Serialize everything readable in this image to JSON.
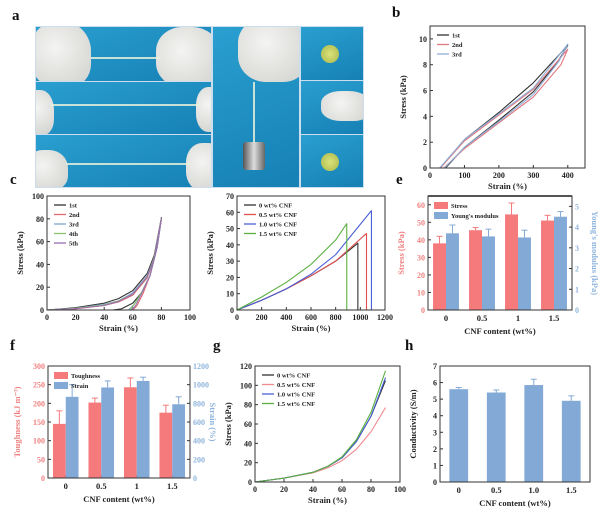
{
  "panels": {
    "a": "a",
    "b": "b",
    "c": "c",
    "d": "d",
    "e": "e",
    "f": "f",
    "g": "g",
    "h": "h"
  },
  "colors": {
    "photo_bg": "#1f8fc0",
    "bar_red": "#f47a7c",
    "bar_blue": "#83a9d6"
  },
  "chart_data": [
    {
      "panel": "b",
      "type": "line",
      "xlabel": "Strain (%)",
      "ylabel": "Stress (kPa)",
      "xlim": [
        0,
        450
      ],
      "ylim": [
        0,
        11
      ],
      "xticks": [
        0,
        100,
        200,
        300,
        400
      ],
      "yticks": [
        0,
        2,
        4,
        6,
        8,
        10
      ],
      "legend": "top-left",
      "series": [
        {
          "name": "1st",
          "color": "#333333",
          "x": [
            30,
            100,
            200,
            300,
            400,
            370,
            300,
            200,
            100,
            45
          ],
          "y": [
            0,
            2.2,
            4.3,
            6.6,
            9.5,
            8.2,
            5.9,
            3.7,
            1.6,
            0
          ]
        },
        {
          "name": "2nd",
          "color": "#e07880",
          "x": [
            30,
            100,
            200,
            300,
            400,
            380,
            300,
            200,
            100,
            40
          ],
          "y": [
            0,
            2.1,
            4.1,
            6.1,
            9.2,
            8.0,
            5.5,
            3.5,
            1.5,
            0
          ]
        },
        {
          "name": "3rd",
          "color": "#8fb0d8",
          "x": [
            28,
            100,
            200,
            300,
            400,
            375,
            300,
            200,
            100,
            42
          ],
          "y": [
            0,
            2.2,
            4.2,
            6.2,
            9.6,
            8.3,
            5.7,
            3.6,
            1.6,
            0
          ]
        }
      ]
    },
    {
      "panel": "c",
      "type": "line",
      "xlabel": "Strain (%)",
      "ylabel": "Stress (kPa)",
      "xlim": [
        0,
        100
      ],
      "ylim": [
        0,
        100
      ],
      "xticks": [
        0,
        20,
        40,
        60,
        80,
        100
      ],
      "yticks": [
        0,
        20,
        40,
        60,
        80,
        100
      ],
      "legend": "top-left",
      "series": [
        {
          "name": "1st",
          "color": "#333333",
          "x": [
            0,
            20,
            40,
            50,
            60,
            70,
            75,
            80,
            77,
            72,
            66,
            60,
            52,
            46
          ],
          "y": [
            0,
            2,
            6,
            10,
            17,
            32,
            48,
            81,
            55,
            30,
            15,
            6,
            1,
            0
          ]
        },
        {
          "name": "2nd",
          "color": "#e06a70",
          "x": [
            0,
            20,
            40,
            50,
            60,
            70,
            75,
            80,
            77,
            72,
            67,
            63,
            60
          ],
          "y": [
            0,
            1,
            4,
            7,
            13,
            28,
            45,
            80,
            55,
            30,
            14,
            4,
            0
          ]
        },
        {
          "name": "3rd",
          "color": "#7fa8d0",
          "x": [
            0,
            20,
            40,
            50,
            60,
            70,
            75,
            80,
            77,
            72,
            66,
            61,
            57
          ],
          "y": [
            0,
            1.5,
            5,
            8,
            15,
            30,
            46,
            80,
            55,
            30,
            15,
            5,
            0
          ]
        },
        {
          "name": "4th",
          "color": "#8cc070",
          "x": [
            0,
            20,
            40,
            50,
            60,
            70,
            75,
            80,
            77,
            72,
            66,
            61,
            58
          ],
          "y": [
            0,
            1.5,
            4.5,
            8,
            14,
            29,
            46,
            80,
            55,
            30,
            15,
            5,
            0
          ]
        },
        {
          "name": "5th",
          "color": "#9a70b0",
          "x": [
            0,
            20,
            40,
            50,
            60,
            70,
            75,
            80,
            77,
            72,
            66,
            62,
            59
          ],
          "y": [
            0,
            1.2,
            4,
            7.5,
            14,
            29,
            45,
            80,
            55,
            30,
            14,
            4,
            0
          ]
        }
      ]
    },
    {
      "panel": "d",
      "type": "line",
      "xlabel": "Strain (%)",
      "ylabel": "Stress (kPa)",
      "xlim": [
        0,
        1200
      ],
      "ylim": [
        0,
        70
      ],
      "xticks": [
        0,
        200,
        400,
        600,
        800,
        1000,
        1200
      ],
      "yticks": [
        0,
        10,
        20,
        30,
        40,
        50,
        60,
        70
      ],
      "legend": "top-left",
      "series": [
        {
          "name": "0 wt% CNF",
          "color": "#333333",
          "x": [
            0,
            200,
            400,
            600,
            800,
            980,
            980
          ],
          "y": [
            0,
            6,
            13,
            21,
            30,
            41,
            0
          ]
        },
        {
          "name": "0.5 wt% CNF",
          "color": "#e05050",
          "x": [
            0,
            200,
            400,
            600,
            800,
            1050,
            1050
          ],
          "y": [
            0,
            6,
            13,
            21,
            30,
            47,
            0
          ]
        },
        {
          "name": "1.0 wt% CNF",
          "color": "#4a60d8",
          "x": [
            0,
            200,
            400,
            600,
            800,
            1090,
            1090
          ],
          "y": [
            0,
            6,
            13,
            22,
            34,
            61,
            0
          ]
        },
        {
          "name": "1.5 wt% CNF",
          "color": "#5ab040",
          "x": [
            0,
            200,
            400,
            600,
            800,
            890,
            890
          ],
          "y": [
            0,
            8,
            17,
            28,
            43,
            53,
            0
          ]
        }
      ]
    },
    {
      "panel": "e",
      "type": "bar",
      "xlabel": "CNF content (wt%)",
      "ylabel": "Stress (kPa)",
      "y2label": "Young's modulus (kPa)",
      "categories": [
        "0",
        "0.5",
        "1",
        "1.5"
      ],
      "ylim": [
        0,
        65
      ],
      "yticks": [
        0,
        10,
        20,
        30,
        40,
        50,
        60
      ],
      "y2lim": [
        0,
        5.5
      ],
      "y2ticks": [
        0,
        1,
        2,
        3,
        4,
        5
      ],
      "legend": "top-left",
      "series": [
        {
          "name": "Stress",
          "color": "#f47a7c",
          "axis": "left",
          "values": [
            38,
            45.5,
            54.5,
            51
          ],
          "errors": [
            4,
            1.5,
            6.5,
            3
          ]
        },
        {
          "name": "Young's modulus",
          "color": "#83a9d6",
          "axis": "right",
          "values": [
            3.7,
            3.55,
            3.5,
            4.5
          ],
          "errors": [
            0.4,
            0.35,
            0.35,
            0.25
          ]
        }
      ]
    },
    {
      "panel": "f",
      "type": "bar",
      "xlabel": "CNF content (wt%)",
      "ylabel": "Toughness (kJ m⁻³)",
      "y2label": "Strain (%)",
      "categories": [
        "0",
        "0.5",
        "1",
        "1.5"
      ],
      "ylim": [
        0,
        300
      ],
      "yticks": [
        0,
        50,
        100,
        150,
        200,
        250,
        300
      ],
      "y2lim": [
        0,
        1200
      ],
      "y2ticks": [
        0,
        200,
        400,
        600,
        800,
        1000,
        1200
      ],
      "legend": "top-left",
      "series": [
        {
          "name": "Toughness",
          "color": "#f47a7c",
          "axis": "left",
          "values": [
            145,
            202,
            243,
            175
          ],
          "errors": [
            35,
            12,
            25,
            20
          ]
        },
        {
          "name": "Strain",
          "color": "#83a9d6",
          "axis": "right",
          "values": [
            870,
            970,
            1040,
            790
          ],
          "errors": [
            130,
            70,
            40,
            80
          ]
        }
      ]
    },
    {
      "panel": "g",
      "type": "line",
      "xlabel": "Strain (%)",
      "ylabel": "Stress (kPa)",
      "xlim": [
        0,
        100
      ],
      "ylim": [
        0,
        120
      ],
      "xticks": [
        0,
        20,
        40,
        60,
        80,
        100
      ],
      "yticks": [
        0,
        20,
        40,
        60,
        80,
        100,
        120
      ],
      "legend": "top-left",
      "series": [
        {
          "name": "0 wt% CNF",
          "color": "#333333",
          "x": [
            0,
            20,
            40,
            50,
            60,
            70,
            80,
            90
          ],
          "y": [
            0,
            4,
            10,
            16,
            25,
            42,
            68,
            105
          ]
        },
        {
          "name": "0.5 wt% CNF",
          "color": "#f08a90",
          "x": [
            0,
            20,
            40,
            50,
            60,
            70,
            80,
            90
          ],
          "y": [
            0,
            4,
            9.5,
            14.5,
            22,
            34,
            52,
            77
          ]
        },
        {
          "name": "1.0 wt% CNF",
          "color": "#4a60d8",
          "x": [
            0,
            20,
            40,
            50,
            60,
            70,
            80,
            90
          ],
          "y": [
            0,
            4,
            10,
            16,
            25,
            42,
            68,
            108
          ]
        },
        {
          "name": "1.5 wt% CNF",
          "color": "#5ab040",
          "x": [
            0,
            20,
            40,
            50,
            60,
            70,
            80,
            90
          ],
          "y": [
            0,
            4,
            10,
            16,
            26,
            44,
            72,
            115
          ]
        }
      ]
    },
    {
      "panel": "h",
      "type": "bar",
      "xlabel": "CNF content (wt%)",
      "ylabel": "Conductivity (S/m)",
      "categories": [
        "0",
        "0.5",
        "1.0",
        "1.5"
      ],
      "ylim": [
        0,
        7
      ],
      "yticks": [
        0,
        1,
        2,
        3,
        4,
        5,
        6,
        7
      ],
      "series": [
        {
          "color": "#83a9d6",
          "axis": "left",
          "values": [
            5.6,
            5.4,
            5.85,
            4.9
          ],
          "errors": [
            0.1,
            0.15,
            0.35,
            0.3
          ]
        }
      ]
    }
  ]
}
